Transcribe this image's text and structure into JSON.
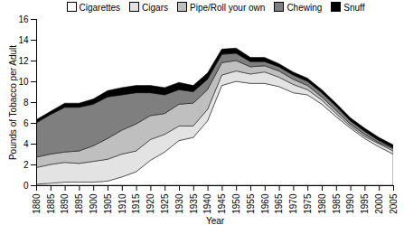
{
  "chart_data": {
    "type": "area",
    "stacked": true,
    "x_label": "Year",
    "y_label": "Pounds of Tobacco per Adult",
    "x": [
      1880,
      1885,
      1890,
      1895,
      1900,
      1905,
      1910,
      1915,
      1920,
      1925,
      1930,
      1935,
      1940,
      1945,
      1950,
      1955,
      1960,
      1965,
      1970,
      1975,
      1980,
      1985,
      1990,
      1995,
      2000,
      2005
    ],
    "series": [
      {
        "name": "Cigarettes",
        "color": "#ffffff",
        "values": [
          0.1,
          0.2,
          0.3,
          0.3,
          0.3,
          0.4,
          0.8,
          1.3,
          2.4,
          3.2,
          4.3,
          4.6,
          6.2,
          9.6,
          10.0,
          9.8,
          9.8,
          9.5,
          8.9,
          8.7,
          7.8,
          6.6,
          5.5,
          4.5,
          3.7,
          3.0
        ]
      },
      {
        "name": "Cigars",
        "color": "#e3e3e3",
        "values": [
          1.6,
          1.8,
          1.9,
          1.8,
          2.0,
          2.1,
          2.2,
          2.0,
          2.0,
          1.7,
          1.4,
          1.1,
          1.1,
          1.0,
          1.0,
          0.9,
          1.1,
          0.9,
          0.8,
          0.5,
          0.4,
          0.3,
          0.2,
          0.2,
          0.3,
          0.3
        ]
      },
      {
        "name": "Pipe/Roll your own",
        "color": "#bfbfbf",
        "values": [
          1.0,
          1.0,
          1.0,
          1.2,
          1.5,
          2.0,
          2.3,
          2.6,
          2.3,
          2.0,
          2.1,
          2.2,
          1.9,
          1.2,
          1.0,
          0.7,
          0.6,
          0.6,
          0.5,
          0.4,
          0.3,
          0.3,
          0.2,
          0.2,
          0.1,
          0.2
        ]
      },
      {
        "name": "Chewing",
        "color": "#7f7f7f",
        "values": [
          3.3,
          3.8,
          4.3,
          4.2,
          4.0,
          4.0,
          3.4,
          3.0,
          2.2,
          1.8,
          1.4,
          1.1,
          1.0,
          0.8,
          0.7,
          0.5,
          0.4,
          0.4,
          0.4,
          0.4,
          0.4,
          0.4,
          0.3,
          0.3,
          0.2,
          0.1
        ]
      },
      {
        "name": "Snuff",
        "color": "#000000",
        "values": [
          0.3,
          0.3,
          0.4,
          0.4,
          0.5,
          0.6,
          0.7,
          0.7,
          0.7,
          0.7,
          0.7,
          0.6,
          0.6,
          0.5,
          0.5,
          0.4,
          0.4,
          0.3,
          0.3,
          0.3,
          0.3,
          0.3,
          0.3,
          0.3,
          0.3,
          0.3
        ]
      }
    ],
    "xlim": [
      1880,
      2005
    ],
    "xticks": [
      1880,
      1885,
      1890,
      1895,
      1900,
      1905,
      1910,
      1915,
      1920,
      1925,
      1930,
      1935,
      1940,
      1945,
      1950,
      1955,
      1960,
      1965,
      1970,
      1975,
      1980,
      1985,
      1990,
      1995,
      2000,
      2005
    ],
    "ylim": [
      0,
      16
    ],
    "yticks": [
      0,
      2,
      4,
      6,
      8,
      10,
      12,
      14,
      16
    ],
    "grid": false,
    "legend": "top"
  }
}
